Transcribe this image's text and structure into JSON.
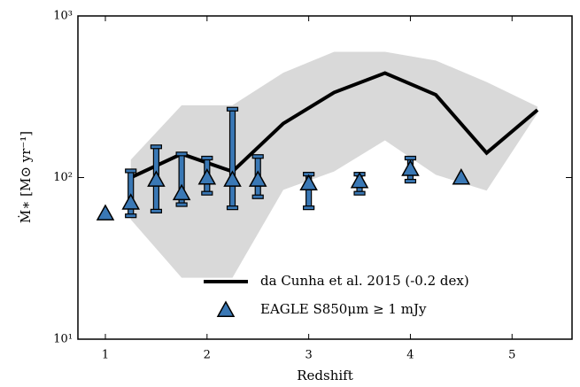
{
  "chart_data": {
    "type": "line-scatter",
    "xlabel": "Redshift",
    "ylabel": "Ṁ∗ [M⊙ yr⁻¹]",
    "xlim": [
      0.73,
      5.59
    ],
    "xticks": [
      1,
      2,
      3,
      4,
      5
    ],
    "ylim": [
      10,
      1000
    ],
    "yticks": [
      {
        "value": 10,
        "label": "10¹"
      },
      {
        "value": 100,
        "label": "10²"
      },
      {
        "value": 1000,
        "label": "10³"
      }
    ],
    "log_y": true,
    "legend": "lower right",
    "band": {
      "color": "#d9d9d9",
      "x": [
        1.25,
        1.75,
        2.25,
        2.75,
        3.25,
        3.75,
        4.25,
        4.75,
        5.25
      ],
      "lower": [
        55,
        24,
        24,
        84,
        109,
        170,
        104,
        83,
        250
      ],
      "upper": [
        129,
        280,
        280,
        445,
        600,
        600,
        530,
        390,
        275
      ]
    },
    "series": [
      {
        "name": "da Cunha et al. 2015 (-0.2 dex)",
        "kind": "line",
        "color": "#000000",
        "x": [
          1.25,
          1.75,
          2.25,
          2.75,
          3.25,
          3.75,
          4.25,
          4.75,
          5.25
        ],
        "values": [
          100,
          140,
          109,
          216,
          336,
          443,
          325,
          142,
          262
        ]
      },
      {
        "name": "EAGLE S850μm ≥ 1 mJy",
        "kind": "errorbar",
        "color": "#3a78b5",
        "x": [
          1.0,
          1.25,
          1.5,
          1.75,
          2.0,
          2.25,
          2.5,
          3.0,
          3.5,
          4.0,
          4.5
        ],
        "values": [
          60,
          70,
          97,
          80,
          100,
          97,
          97,
          92,
          95,
          113,
          100
        ],
        "lower": [
          null,
          58,
          62,
          68,
          80,
          65,
          76,
          65,
          80,
          95,
          null
        ],
        "upper": [
          null,
          110,
          155,
          140,
          132,
          265,
          135,
          105,
          105,
          132,
          null
        ]
      }
    ]
  }
}
